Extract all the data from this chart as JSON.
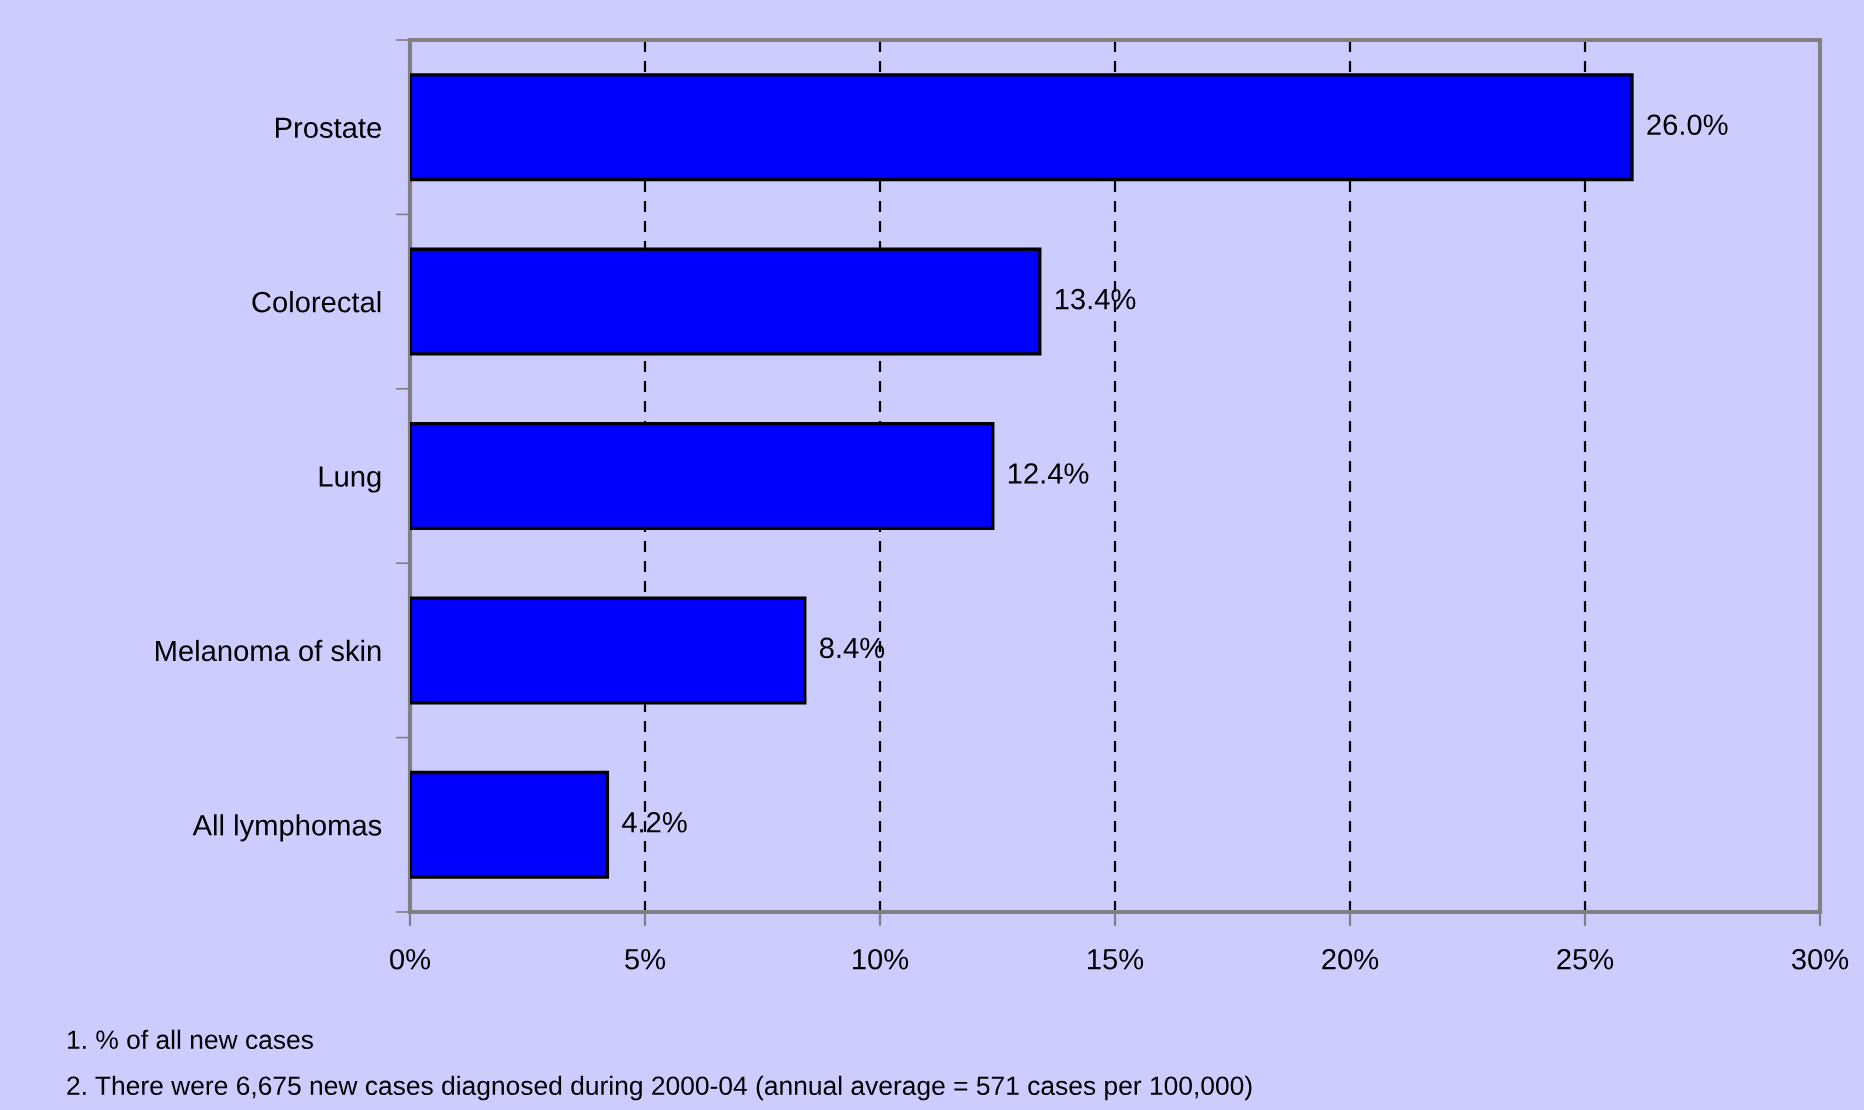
{
  "chart_data": {
    "type": "bar",
    "orientation": "horizontal",
    "categories": [
      "Prostate",
      "Colorectal",
      "Lung",
      "Melanoma of skin",
      "All lymphomas"
    ],
    "values": [
      26.0,
      13.4,
      12.4,
      8.4,
      4.2
    ],
    "value_labels": [
      "26.0%",
      "13.4%",
      "12.4%",
      "8.4%",
      "4.2%"
    ],
    "color": "#0000ff",
    "xlim": [
      0,
      30
    ],
    "xticks": [
      {
        "value": 0,
        "label": "0%"
      },
      {
        "value": 5,
        "label": "5%"
      },
      {
        "value": 10,
        "label": "10%"
      },
      {
        "value": 15,
        "label": "15%"
      },
      {
        "value": 20,
        "label": "20%"
      },
      {
        "value": 25,
        "label": "25%"
      },
      {
        "value": 30,
        "label": "30%"
      }
    ],
    "grid": "x",
    "legend": false,
    "annotations": [
      "1. % of all new cases",
      "2. There were 6,675 new cases diagnosed during 2000-04 (annual average = 571 cases per 100,000)"
    ]
  }
}
